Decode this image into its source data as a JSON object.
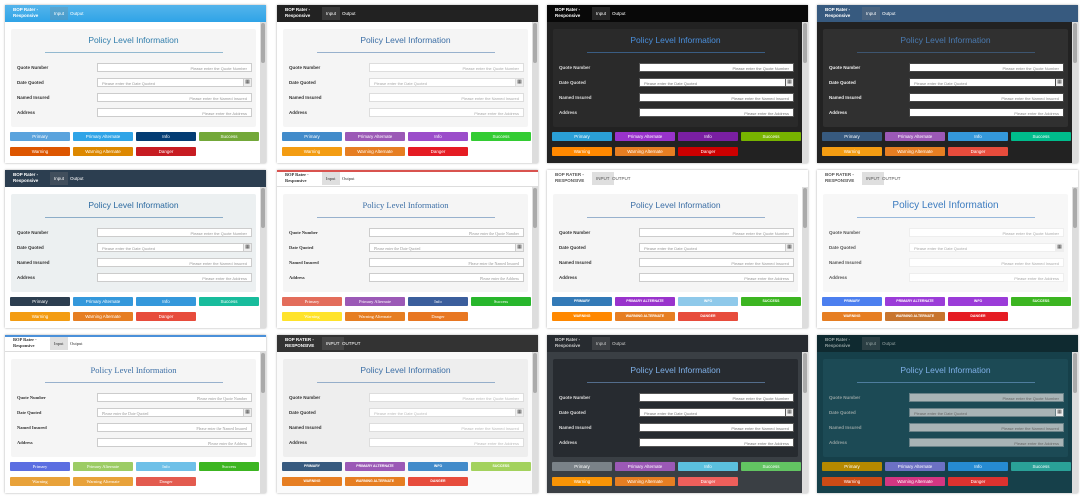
{
  "app_title": "BOP Rater - Responsive",
  "tabs": [
    "Input",
    "Output"
  ],
  "heading": "Policy Level Information",
  "fields": [
    {
      "label": "Quote Number",
      "placeholder": "Please enter the Quote Number"
    },
    {
      "label": "Date Quoted",
      "placeholder": "Please enter the Date Quoted"
    },
    {
      "label": "Named Insured",
      "placeholder": "Please enter the Named Insured"
    },
    {
      "label": "Address",
      "placeholder": "Please enter the Address"
    }
  ],
  "buttons": [
    "Primary",
    "Primary Alternate",
    "Info",
    "Success",
    "Warning",
    "Warning Alternate",
    "Danger"
  ]
}
